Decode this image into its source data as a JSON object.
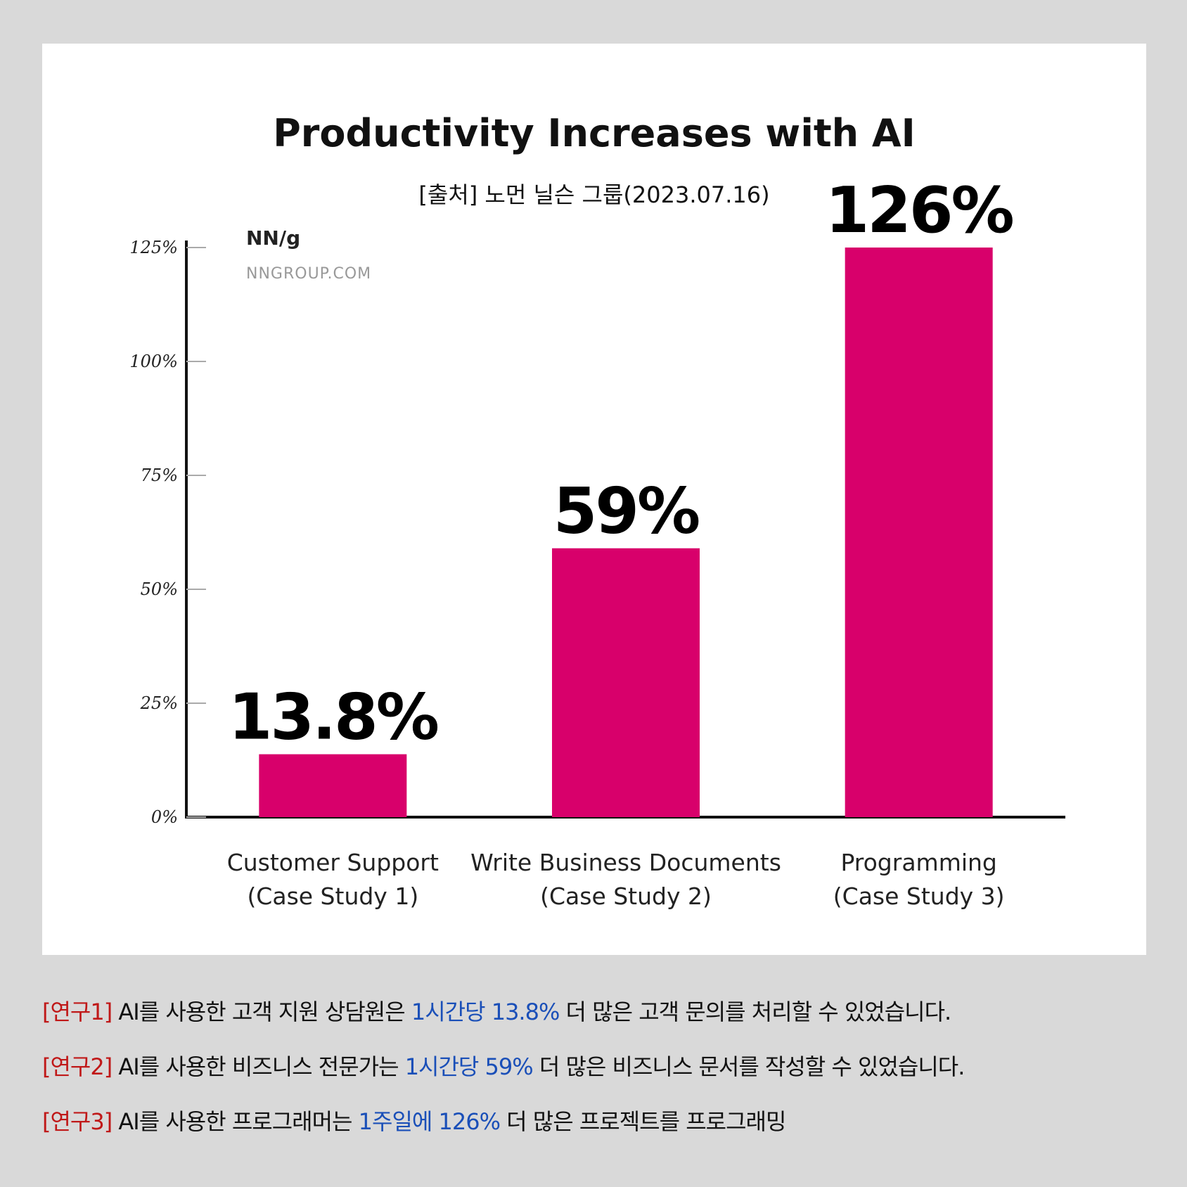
{
  "chart_data": {
    "type": "bar",
    "title": "Productivity Increases with AI",
    "subtitle": "[출처] 노먼 닐슨 그룹(2023.07.16)",
    "categories": [
      "Customer Support",
      "Write Business Documents",
      "Programming"
    ],
    "category_sublabels": [
      "(Case Study 1)",
      "(Case Study 2)",
      "(Case Study 3)"
    ],
    "values": [
      13.8,
      59,
      126
    ],
    "value_labels": [
      "13.8%",
      "59%",
      "126%"
    ],
    "bar_color": "#d8006b",
    "ylim": [
      0,
      125
    ],
    "yticks": [
      0,
      25,
      50,
      75,
      100,
      125
    ],
    "ytick_labels": [
      "0%",
      "25%",
      "50%",
      "75%",
      "100%",
      "125%"
    ],
    "xlabel": "",
    "ylabel": "",
    "grid": false,
    "legend": "none"
  },
  "branding": {
    "logo": "NN/g",
    "url": "NNGROUP.COM"
  },
  "notes": [
    {
      "tag": "[연구1]",
      "before": " AI를 사용한 고객 지원 상담원은 ",
      "highlight": "1시간당 13.8%",
      "after": " 더 많은 고객 문의를 처리할 수 있었습니다."
    },
    {
      "tag": "[연구2]",
      "before": " AI를 사용한 비즈니스 전문가는 ",
      "highlight": "1시간당 59%",
      "after": " 더 많은 비즈니스 문서를 작성할 수 있었습니다."
    },
    {
      "tag": "[연구3]",
      "before": " AI를 사용한 프로그래머는 ",
      "highlight": "1주일에 126%",
      "after": " 더 많은 프로젝트를 프로그래밍"
    }
  ],
  "colors": {
    "tag": "#c01818",
    "highlight": "#1a4fb8",
    "background": "#d9d9d9"
  }
}
